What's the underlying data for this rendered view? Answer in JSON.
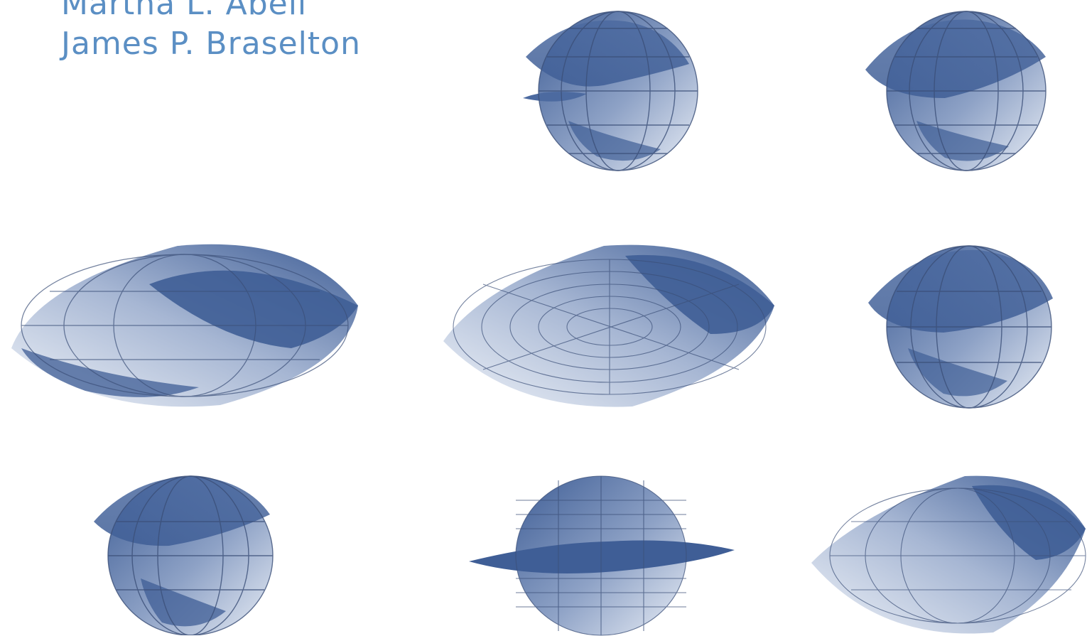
{
  "cover": {
    "authors": [
      "Martha L. Abell",
      "James P. Braselton"
    ]
  },
  "colors": {
    "author_text": "#5b8fc4",
    "surface_dark": "#3f5e96",
    "surface_light": "#e9eef6",
    "mesh": "#3b4f78"
  },
  "figures": [
    "surface-plot-icon",
    "surface-plot-icon",
    "surface-plot-icon",
    "surface-plot-icon",
    "surface-plot-icon",
    "surface-plot-icon",
    "surface-plot-icon",
    "surface-plot-icon"
  ]
}
